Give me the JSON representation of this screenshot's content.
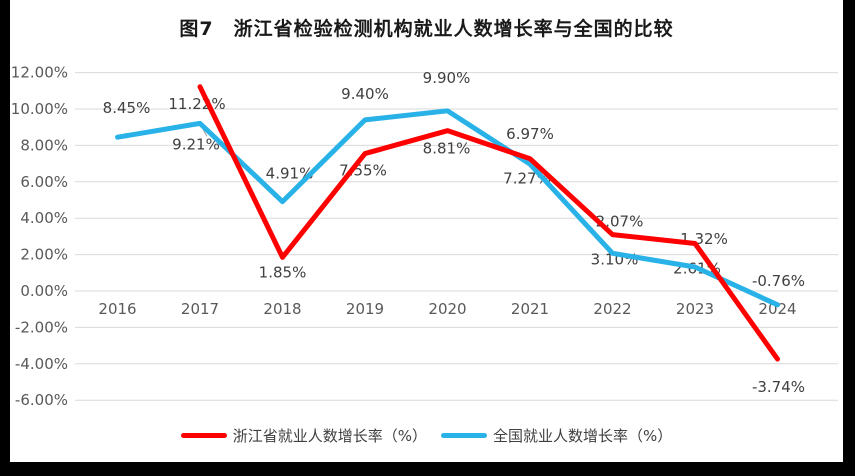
{
  "chart_data": {
    "type": "line",
    "title": "图7　浙江省检验检测机构就业人数增长率与全国的比较",
    "categories": [
      "2016",
      "2017",
      "2018",
      "2019",
      "2020",
      "2021",
      "2022",
      "2023",
      "2024"
    ],
    "series": [
      {
        "name": "浙江省就业人数增长率（%）",
        "color": "#fe0000",
        "values": [
          null,
          11.22,
          1.85,
          7.55,
          8.81,
          7.27,
          3.1,
          2.61,
          -3.74
        ],
        "labels": [
          "",
          "11.22%",
          "1.85%",
          "7.55%",
          "8.81%",
          "7.27%",
          "3.10%",
          "2.61%",
          "-3.74%"
        ]
      },
      {
        "name": "全国就业人数增长率（%）",
        "color": "#29b2e8",
        "values": [
          8.45,
          9.21,
          4.91,
          9.4,
          9.9,
          6.97,
          2.07,
          1.32,
          -0.76
        ],
        "labels": [
          "8.45%",
          "9.21%",
          "4.91%",
          "9.40%",
          "9.90%",
          "6.97%",
          "2.07%",
          "1.32%",
          "-0.76%"
        ]
      }
    ],
    "y_ticks": [
      "12.00%",
      "10.00%",
      "8.00%",
      "6.00%",
      "4.00%",
      "2.00%",
      "0.00%",
      "-2.00%",
      "-4.00%",
      "-6.00%"
    ],
    "ylim": [
      -6,
      12
    ],
    "xlabel": "",
    "ylabel": "",
    "grid": true,
    "legend_position": "bottom",
    "colors": {
      "gridline": "#d9d9d9",
      "tick_text": "#595959",
      "data_label_text": "#404040",
      "leader_line": "#9b9b9b"
    }
  }
}
